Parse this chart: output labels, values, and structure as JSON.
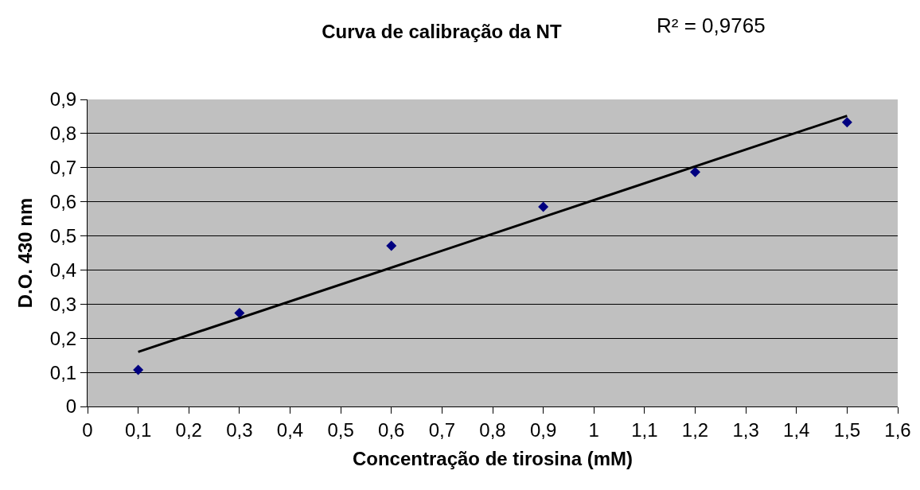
{
  "chart_data": {
    "type": "scatter",
    "title": "Curva de calibração da NT",
    "xlabel": "Concentração de tirosina (mM)",
    "ylabel": "D.O. 430 nm",
    "annotations": [
      "R² = 0,9765"
    ],
    "x": [
      0.1,
      0.3,
      0.6,
      0.9,
      1.2,
      1.5
    ],
    "series": [
      {
        "color": "#000080",
        "values": [
          0.107,
          0.274,
          0.471,
          0.585,
          0.687,
          0.833
        ],
        "marker": "diamond"
      },
      {
        "type": "line",
        "color": "#000000",
        "x": [
          0.1,
          1.5
        ],
        "values": [
          0.16,
          0.852
        ],
        "marker": "none"
      }
    ],
    "xlim": [
      0,
      1.6
    ],
    "ylim": [
      0,
      0.9
    ],
    "xticks": [
      0,
      {
        "value": 0.1,
        "label": "0,1"
      },
      {
        "value": 0.2,
        "label": "0,2"
      },
      {
        "value": 0.3,
        "label": "0,3"
      },
      {
        "value": 0.4,
        "label": "0,4"
      },
      {
        "value": 0.5,
        "label": "0,5"
      },
      {
        "value": 0.6,
        "label": "0,6"
      },
      {
        "value": 0.7,
        "label": "0,7"
      },
      {
        "value": 0.8,
        "label": "0,8"
      },
      {
        "value": 0.9,
        "label": "0,9"
      },
      1,
      {
        "value": 1.1,
        "label": "1,1"
      },
      {
        "value": 1.2,
        "label": "1,2"
      },
      {
        "value": 1.3,
        "label": "1,3"
      },
      {
        "value": 1.4,
        "label": "1,4"
      },
      {
        "value": 1.5,
        "label": "1,5"
      },
      {
        "value": 1.6,
        "label": "1,6"
      }
    ],
    "yticks": [
      0,
      {
        "value": 0.1,
        "label": "0,1"
      },
      {
        "value": 0.2,
        "label": "0,2"
      },
      {
        "value": 0.3,
        "label": "0,3"
      },
      {
        "value": 0.4,
        "label": "0,4"
      },
      {
        "value": 0.5,
        "label": "0,5"
      },
      {
        "value": 0.6,
        "label": "0,6"
      },
      {
        "value": 0.7,
        "label": "0,7"
      },
      {
        "value": 0.8,
        "label": "0,8"
      },
      {
        "value": 0.9,
        "label": "0,9"
      }
    ],
    "grid": "y",
    "legend": false
  }
}
